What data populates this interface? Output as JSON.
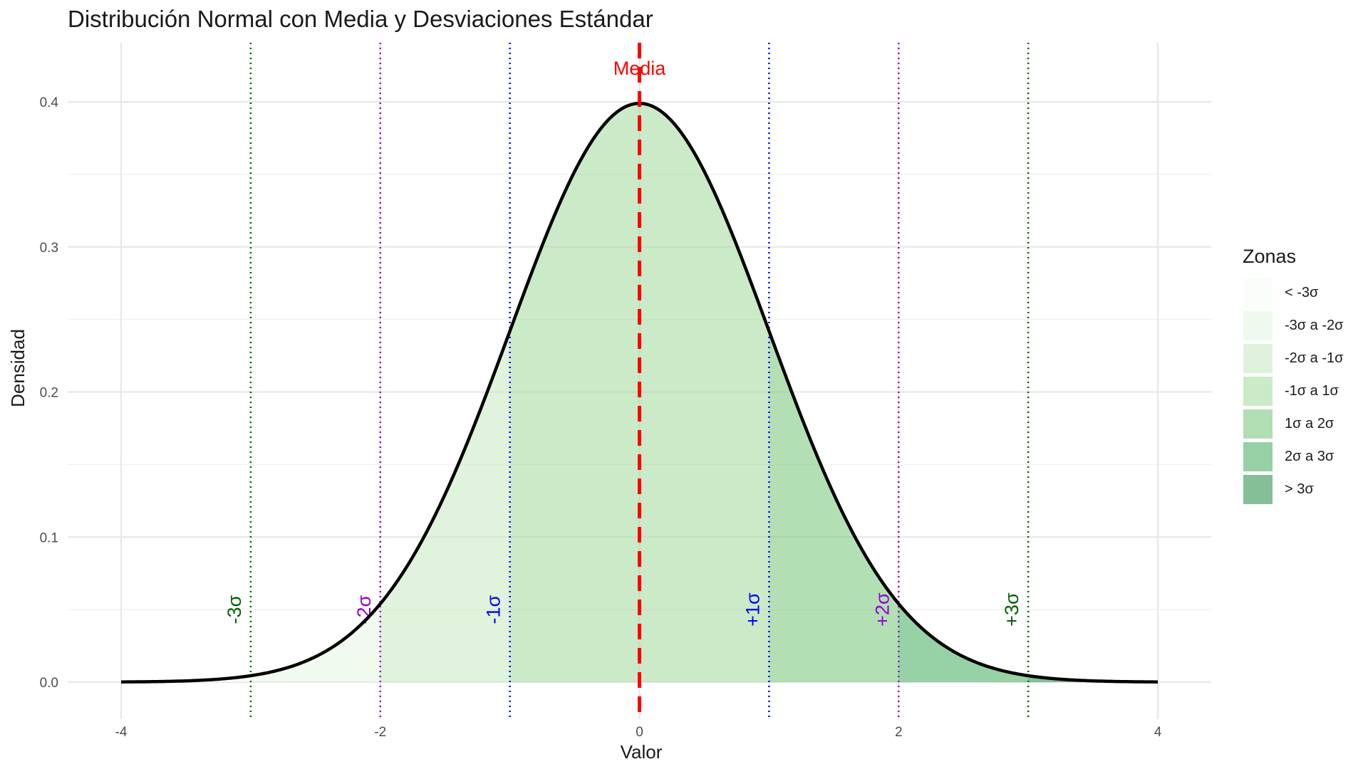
{
  "chart_data": {
    "type": "area",
    "title": "Distribución Normal con Media y Desviaciones Estándar",
    "xlabel": "Valor",
    "ylabel": "Densidad",
    "xlim": [
      -4,
      4
    ],
    "ylim": [
      0,
      0.4
    ],
    "x_ticks": [
      -4,
      -2,
      0,
      2,
      4
    ],
    "y_ticks": [
      0.0,
      0.1,
      0.2,
      0.3,
      0.4
    ],
    "y_tick_labels": [
      "0.0",
      "0.1",
      "0.2",
      "0.3",
      "0.4"
    ],
    "grid": true,
    "curve": {
      "x": [
        -4,
        -3.5,
        -3,
        -2.5,
        -2,
        -1.5,
        -1,
        -0.5,
        0,
        0.5,
        1,
        1.5,
        2,
        2.5,
        3,
        3.5,
        4
      ],
      "y": [
        0.0001,
        0.0009,
        0.0044,
        0.0175,
        0.054,
        0.1295,
        0.242,
        0.3521,
        0.3989,
        0.3521,
        0.242,
        0.1295,
        0.054,
        0.0175,
        0.0044,
        0.0009,
        0.0001
      ],
      "color": "#000000"
    },
    "zones": [
      {
        "name": "< -3σ",
        "from": -4,
        "to": -3,
        "color": "#f7fcf5"
      },
      {
        "name": "-3σ a -2σ",
        "from": -3,
        "to": -2,
        "color": "#e5f5e0"
      },
      {
        "name": "-2σ a -1σ",
        "from": -2,
        "to": -1,
        "color": "#c7e9c0"
      },
      {
        "name": "-1σ a 1σ",
        "from": -1,
        "to": 1,
        "color": "#a1d99b"
      },
      {
        "name": "1σ a 2σ",
        "from": 1,
        "to": 2,
        "color": "#74c476"
      },
      {
        "name": "2σ a 3σ",
        "from": 2,
        "to": 3,
        "color": "#41ab5d"
      },
      {
        "name": "> 3σ",
        "from": 3,
        "to": 4,
        "color": "#238b45"
      }
    ],
    "mean_line": {
      "x": 0,
      "label": "Media",
      "color": "#ff0000",
      "style": "dashed"
    },
    "sd_lines": [
      {
        "x": -3,
        "label": "-3σ",
        "color": "#006400"
      },
      {
        "x": -2,
        "label": "-2σ",
        "color": "#9400d3"
      },
      {
        "x": -1,
        "label": "-1σ",
        "color": "#0000ff"
      },
      {
        "x": 1,
        "label": "+1σ",
        "color": "#0000ff"
      },
      {
        "x": 2,
        "label": "+2σ",
        "color": "#9400d3"
      },
      {
        "x": 3,
        "label": "+3σ",
        "color": "#006400"
      }
    ],
    "legend": {
      "title": "Zonas",
      "placement": "right"
    }
  }
}
